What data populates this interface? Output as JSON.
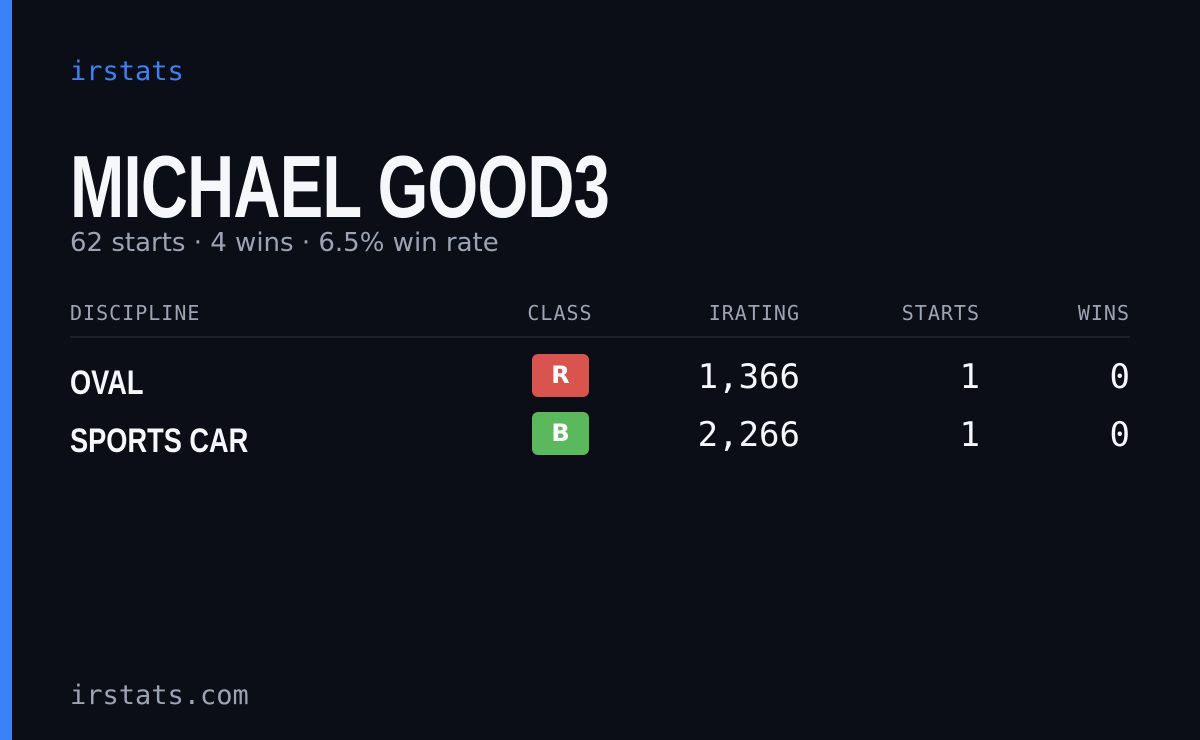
{
  "brand": "irstats",
  "driver": {
    "name": "MICHAEL GOOD3",
    "summary": "62 starts · 4 wins · 6.5% win rate"
  },
  "table": {
    "headers": [
      "DISCIPLINE",
      "CLASS",
      "IRATING",
      "STARTS",
      "WINS"
    ],
    "rows": [
      [
        "OVAL",
        "R",
        "1,366",
        "1",
        "0"
      ],
      [
        "SPORTS CAR",
        "B",
        "2,266",
        "1",
        "0"
      ]
    ]
  },
  "footer": "irstats.com"
}
